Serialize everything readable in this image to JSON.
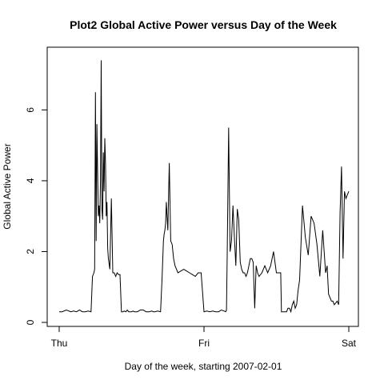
{
  "chart_data": {
    "type": "line",
    "title": "Plot2 Global Active Power versus Day of the Week",
    "xlabel": "Day of the week, starting 2007-02-01",
    "ylabel": "Global Active Power",
    "xlim": [
      0,
      2
    ],
    "ylim": [
      0,
      7.5
    ],
    "x_ticks": [
      {
        "value": 0,
        "label": "Thu"
      },
      {
        "value": 1,
        "label": "Fri"
      },
      {
        "value": 2,
        "label": "Sat"
      }
    ],
    "y_ticks": [
      {
        "value": 0,
        "label": "0"
      },
      {
        "value": 2,
        "label": "2"
      },
      {
        "value": 4,
        "label": "4"
      },
      {
        "value": 6,
        "label": "6"
      }
    ],
    "grid": false,
    "legend": "none",
    "series_color": "#000000",
    "series": [
      {
        "x": [
          0.0,
          0.02,
          0.05,
          0.08,
          0.1,
          0.12,
          0.14,
          0.16,
          0.18,
          0.2,
          0.22,
          0.23,
          0.24,
          0.245,
          0.25,
          0.255,
          0.26,
          0.27,
          0.275,
          0.28,
          0.285,
          0.29,
          0.295,
          0.3,
          0.305,
          0.31,
          0.315,
          0.32,
          0.325,
          0.33,
          0.335,
          0.34,
          0.35,
          0.36,
          0.37,
          0.38,
          0.39,
          0.4,
          0.41,
          0.42,
          0.43,
          0.44,
          0.45,
          0.46,
          0.47,
          0.48,
          0.49,
          0.5,
          0.51,
          0.52,
          0.54,
          0.56,
          0.58,
          0.6,
          0.62,
          0.64,
          0.65,
          0.66,
          0.68,
          0.7,
          0.71,
          0.72,
          0.725,
          0.73,
          0.735,
          0.74,
          0.745,
          0.75,
          0.76,
          0.77,
          0.78,
          0.79,
          0.8,
          0.81,
          0.82,
          0.84,
          0.86,
          0.88,
          0.9,
          0.92,
          0.94,
          0.96,
          0.98,
          1.0,
          1.02,
          1.04,
          1.06,
          1.08,
          1.1,
          1.12,
          1.14,
          1.15,
          1.155,
          1.16,
          1.17,
          1.18,
          1.19,
          1.2,
          1.21,
          1.22,
          1.23,
          1.24,
          1.25,
          1.26,
          1.27,
          1.28,
          1.29,
          1.3,
          1.31,
          1.32,
          1.33,
          1.34,
          1.35,
          1.36,
          1.37,
          1.38,
          1.4,
          1.42,
          1.44,
          1.46,
          1.48,
          1.5,
          1.52,
          1.53,
          1.535,
          1.54,
          1.545,
          1.55,
          1.56,
          1.57,
          1.58,
          1.59,
          1.6,
          1.61,
          1.62,
          1.63,
          1.64,
          1.65,
          1.66,
          1.68,
          1.7,
          1.72,
          1.74,
          1.76,
          1.78,
          1.8,
          1.82,
          1.84,
          1.85,
          1.86,
          1.87,
          1.88,
          1.89,
          1.9,
          1.91,
          1.92,
          1.93,
          1.94,
          1.95,
          1.96,
          1.97,
          1.98,
          1.99,
          2.0
        ],
        "y": [
          0.3,
          0.3,
          0.35,
          0.3,
          0.32,
          0.3,
          0.35,
          0.3,
          0.3,
          0.32,
          0.3,
          1.3,
          1.4,
          1.5,
          6.5,
          2.3,
          5.6,
          3.0,
          3.3,
          2.8,
          4.0,
          7.4,
          3.2,
          2.9,
          4.8,
          3.7,
          5.2,
          4.5,
          3.0,
          3.4,
          2.1,
          1.8,
          1.5,
          3.5,
          1.4,
          1.4,
          1.3,
          1.4,
          1.35,
          1.35,
          0.3,
          0.3,
          0.32,
          0.3,
          0.35,
          0.3,
          0.3,
          0.3,
          0.32,
          0.3,
          0.3,
          0.35,
          0.35,
          0.3,
          0.3,
          0.32,
          0.3,
          0.3,
          0.32,
          0.3,
          1.2,
          2.3,
          2.5,
          2.6,
          2.8,
          3.4,
          3.0,
          2.6,
          4.5,
          2.3,
          2.2,
          1.8,
          1.6,
          1.5,
          1.4,
          1.45,
          1.5,
          1.45,
          1.4,
          1.35,
          1.3,
          1.4,
          1.4,
          0.3,
          0.32,
          0.3,
          0.32,
          0.3,
          0.3,
          0.35,
          0.32,
          0.3,
          0.35,
          1.9,
          5.5,
          2.0,
          2.3,
          3.3,
          2.4,
          1.6,
          3.2,
          2.9,
          1.7,
          1.5,
          1.4,
          1.4,
          1.3,
          1.4,
          1.6,
          1.8,
          1.8,
          1.7,
          0.4,
          1.6,
          1.4,
          1.3,
          1.4,
          1.6,
          1.4,
          1.6,
          2.0,
          1.4,
          1.4,
          1.4,
          0.3,
          0.3,
          0.3,
          0.3,
          0.3,
          0.3,
          0.4,
          0.4,
          0.3,
          0.5,
          0.6,
          0.4,
          0.5,
          0.9,
          1.2,
          3.3,
          2.4,
          1.9,
          3.0,
          2.8,
          2.2,
          1.3,
          2.6,
          1.4,
          1.6,
          0.8,
          0.7,
          0.6,
          0.6,
          0.5,
          0.55,
          0.6,
          0.5,
          3.1,
          4.4,
          1.8,
          3.7,
          3.5,
          3.6,
          3.7
        ]
      }
    ]
  }
}
